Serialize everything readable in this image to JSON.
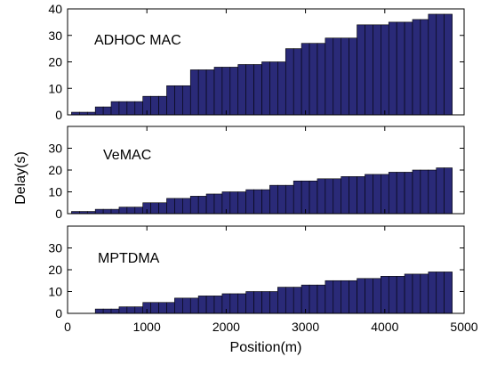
{
  "bar_color": "#2a2a78",
  "chart_data": {
    "type": "bar",
    "layout": "three stacked panels sharing the x axis",
    "xlabel": "Position(m)",
    "ylabel": "Delay(s)",
    "xlim": [
      0,
      5000
    ],
    "xticks": [
      0,
      1000,
      2000,
      3000,
      4000,
      5000
    ],
    "x": [
      100,
      200,
      300,
      400,
      500,
      600,
      700,
      800,
      900,
      1000,
      1100,
      1200,
      1300,
      1400,
      1500,
      1600,
      1700,
      1800,
      1900,
      2000,
      2100,
      2200,
      2300,
      2400,
      2500,
      2600,
      2700,
      2800,
      2900,
      3000,
      3100,
      3200,
      3300,
      3400,
      3500,
      3600,
      3700,
      3800,
      3900,
      4000,
      4100,
      4200,
      4300,
      4400,
      4500,
      4600,
      4700,
      4800
    ],
    "grid": false,
    "panels": [
      {
        "title": "ADHOC MAC",
        "ylim": [
          0,
          40
        ],
        "yticks": [
          0,
          10,
          20,
          30,
          40
        ],
        "values": [
          1,
          1,
          1,
          3,
          3,
          5,
          5,
          5,
          5,
          7,
          7,
          7,
          11,
          11,
          11,
          17,
          17,
          17,
          18,
          18,
          18,
          19,
          19,
          19,
          20,
          20,
          20,
          25,
          25,
          27,
          27,
          27,
          29,
          29,
          29,
          29,
          34,
          34,
          34,
          34,
          35,
          35,
          35,
          36,
          36,
          38,
          38,
          38
        ]
      },
      {
        "title": "VeMAC",
        "ylim": [
          0,
          40
        ],
        "yticks": [
          0,
          10,
          20,
          30
        ],
        "values": [
          1,
          1,
          1,
          2,
          2,
          2,
          3,
          3,
          3,
          5,
          5,
          5,
          7,
          7,
          7,
          8,
          8,
          9,
          9,
          10,
          10,
          10,
          11,
          11,
          11,
          13,
          13,
          13,
          15,
          15,
          15,
          16,
          16,
          16,
          17,
          17,
          17,
          18,
          18,
          18,
          19,
          19,
          19,
          20,
          20,
          20,
          21,
          21
        ]
      },
      {
        "title": "MPTDMA",
        "ylim": [
          0,
          40
        ],
        "yticks": [
          0,
          10,
          20,
          30
        ],
        "values": [
          0,
          0,
          0,
          2,
          2,
          2,
          3,
          3,
          3,
          5,
          5,
          5,
          5,
          7,
          7,
          7,
          8,
          8,
          8,
          9,
          9,
          9,
          10,
          10,
          10,
          10,
          12,
          12,
          12,
          13,
          13,
          13,
          15,
          15,
          15,
          15,
          16,
          16,
          16,
          17,
          17,
          17,
          18,
          18,
          18,
          19,
          19,
          19
        ]
      }
    ]
  }
}
